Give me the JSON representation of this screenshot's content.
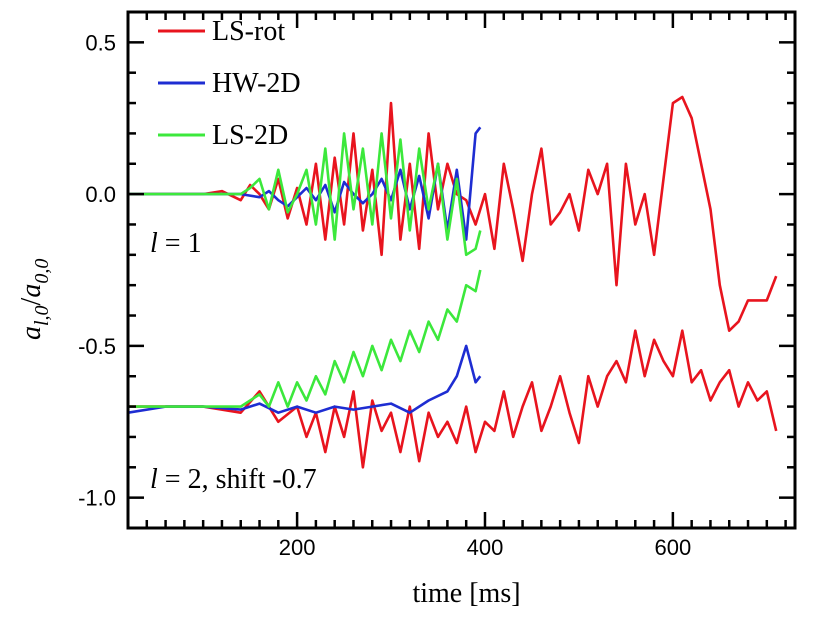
{
  "chart_data": {
    "type": "line",
    "title": "",
    "xlabel": "time [ms]",
    "ylabel": "a_{l,0}/a_{0,0}",
    "ylabel_main": "a",
    "ylabel_sub": "l,0",
    "ylabel_div": "/",
    "ylabel_main2": "a",
    "ylabel_sub2": "0,0",
    "xlim": [
      20,
      730
    ],
    "ylim": [
      -1.1,
      0.6
    ],
    "xticks": [
      200,
      400,
      600
    ],
    "xtick_labels": [
      "200",
      "400",
      "600"
    ],
    "yticks": [
      0.5,
      0.0,
      -0.5,
      -1.0
    ],
    "ytick_labels": [
      "0.5",
      "0.0",
      "-0.5",
      "-1.0"
    ],
    "legend": {
      "position": "top-left",
      "entries": [
        "LS-rot",
        "HW-2D",
        "LS-2D"
      ]
    },
    "annotations": [
      {
        "text": "l = 1",
        "italic_part": "l",
        "rest": " = 1"
      },
      {
        "text": "l = 2, shift -0.7",
        "italic_part": "l",
        "rest": " = 2, shift -0.7"
      }
    ],
    "series": [
      {
        "name": "LS-rot",
        "group": "l=1",
        "color": "#e8141e",
        "x": [
          20,
          60,
          100,
          120,
          140,
          150,
          160,
          170,
          180,
          190,
          200,
          210,
          220,
          230,
          240,
          250,
          260,
          270,
          280,
          290,
          300,
          310,
          320,
          330,
          340,
          350,
          360,
          370,
          380,
          390,
          400,
          410,
          420,
          430,
          440,
          450,
          460,
          470,
          480,
          490,
          500,
          510,
          520,
          530,
          540,
          550,
          560,
          570,
          580,
          590,
          600,
          610,
          620,
          630,
          640,
          650,
          660,
          670,
          680,
          690,
          700,
          710
        ],
        "values": [
          0.0,
          0.0,
          0.0,
          0.01,
          -0.02,
          0.03,
          0.0,
          -0.05,
          0.05,
          -0.08,
          0.02,
          -0.1,
          0.1,
          -0.15,
          0.12,
          -0.1,
          0.2,
          -0.12,
          0.08,
          -0.2,
          0.3,
          -0.15,
          0.1,
          -0.18,
          0.2,
          -0.05,
          0.1,
          0.0,
          -0.02,
          -0.1,
          0.0,
          -0.18,
          0.1,
          -0.05,
          -0.22,
          0.0,
          0.15,
          -0.1,
          -0.06,
          0.0,
          -0.12,
          0.08,
          0.0,
          0.1,
          -0.3,
          0.1,
          -0.1,
          0.0,
          -0.2,
          0.05,
          0.3,
          0.32,
          0.25,
          0.1,
          -0.05,
          -0.3,
          -0.45,
          -0.42,
          -0.35,
          -0.35,
          -0.35,
          -0.27
        ]
      },
      {
        "name": "HW-2D",
        "group": "l=1",
        "color": "#1e2dd2",
        "x": [
          20,
          60,
          100,
          140,
          160,
          170,
          180,
          190,
          200,
          210,
          220,
          230,
          240,
          250,
          260,
          270,
          280,
          290,
          300,
          310,
          320,
          330,
          340,
          350,
          360,
          370,
          380,
          390,
          395
        ],
        "values": [
          0.0,
          0.0,
          0.0,
          0.0,
          -0.01,
          0.01,
          -0.02,
          -0.04,
          -0.01,
          0.02,
          -0.02,
          0.03,
          -0.06,
          0.04,
          0.0,
          -0.03,
          0.0,
          0.05,
          -0.02,
          0.08,
          -0.05,
          0.06,
          -0.08,
          0.1,
          -0.12,
          0.08,
          -0.15,
          0.2,
          0.22
        ]
      },
      {
        "name": "LS-2D",
        "group": "l=1",
        "color": "#3ce83c",
        "x": [
          20,
          60,
          100,
          140,
          150,
          160,
          170,
          180,
          190,
          200,
          210,
          220,
          230,
          240,
          250,
          260,
          270,
          280,
          290,
          300,
          310,
          320,
          330,
          340,
          350,
          360,
          370,
          380,
          390,
          395
        ],
        "values": [
          0.0,
          0.0,
          0.0,
          0.0,
          0.02,
          0.05,
          -0.05,
          0.08,
          -0.06,
          0.0,
          0.08,
          -0.1,
          0.15,
          -0.15,
          0.2,
          -0.05,
          0.15,
          -0.1,
          0.2,
          -0.08,
          0.18,
          -0.12,
          0.15,
          -0.05,
          0.1,
          -0.15,
          0.05,
          -0.2,
          -0.18,
          -0.12
        ]
      },
      {
        "name": "LS-rot",
        "group": "l=2",
        "color": "#e8141e",
        "x": [
          20,
          60,
          100,
          140,
          160,
          180,
          200,
          210,
          220,
          230,
          240,
          250,
          260,
          270,
          280,
          290,
          300,
          310,
          320,
          330,
          340,
          350,
          360,
          370,
          380,
          390,
          400,
          410,
          420,
          430,
          440,
          450,
          460,
          470,
          480,
          490,
          500,
          510,
          520,
          530,
          540,
          550,
          560,
          570,
          580,
          590,
          600,
          610,
          620,
          630,
          640,
          650,
          660,
          670,
          680,
          690,
          700,
          710
        ],
        "values": [
          -0.7,
          -0.7,
          -0.7,
          -0.72,
          -0.65,
          -0.75,
          -0.7,
          -0.8,
          -0.72,
          -0.85,
          -0.7,
          -0.8,
          -0.65,
          -0.9,
          -0.68,
          -0.78,
          -0.72,
          -0.85,
          -0.7,
          -0.88,
          -0.72,
          -0.8,
          -0.75,
          -0.82,
          -0.7,
          -0.85,
          -0.75,
          -0.78,
          -0.65,
          -0.8,
          -0.7,
          -0.62,
          -0.78,
          -0.7,
          -0.6,
          -0.72,
          -0.82,
          -0.6,
          -0.7,
          -0.6,
          -0.55,
          -0.62,
          -0.45,
          -0.6,
          -0.48,
          -0.55,
          -0.6,
          -0.45,
          -0.62,
          -0.58,
          -0.68,
          -0.62,
          -0.58,
          -0.7,
          -0.62,
          -0.68,
          -0.65,
          -0.78
        ]
      },
      {
        "name": "HW-2D",
        "group": "l=2",
        "color": "#1e2dd2",
        "x": [
          20,
          60,
          100,
          140,
          160,
          180,
          200,
          220,
          240,
          260,
          280,
          300,
          320,
          340,
          360,
          370,
          380,
          390,
          395
        ],
        "values": [
          -0.72,
          -0.7,
          -0.7,
          -0.71,
          -0.69,
          -0.72,
          -0.7,
          -0.72,
          -0.7,
          -0.71,
          -0.7,
          -0.69,
          -0.72,
          -0.68,
          -0.65,
          -0.6,
          -0.5,
          -0.62,
          -0.6
        ]
      },
      {
        "name": "LS-2D",
        "group": "l=2",
        "color": "#3ce83c",
        "x": [
          20,
          60,
          100,
          140,
          160,
          170,
          180,
          190,
          200,
          210,
          220,
          230,
          240,
          250,
          260,
          270,
          280,
          290,
          300,
          310,
          320,
          330,
          340,
          350,
          360,
          370,
          380,
          390,
          395
        ],
        "values": [
          -0.7,
          -0.7,
          -0.7,
          -0.7,
          -0.66,
          -0.7,
          -0.62,
          -0.7,
          -0.62,
          -0.68,
          -0.6,
          -0.66,
          -0.55,
          -0.62,
          -0.52,
          -0.6,
          -0.5,
          -0.58,
          -0.48,
          -0.55,
          -0.45,
          -0.52,
          -0.42,
          -0.48,
          -0.38,
          -0.42,
          -0.3,
          -0.32,
          -0.25
        ]
      }
    ]
  }
}
